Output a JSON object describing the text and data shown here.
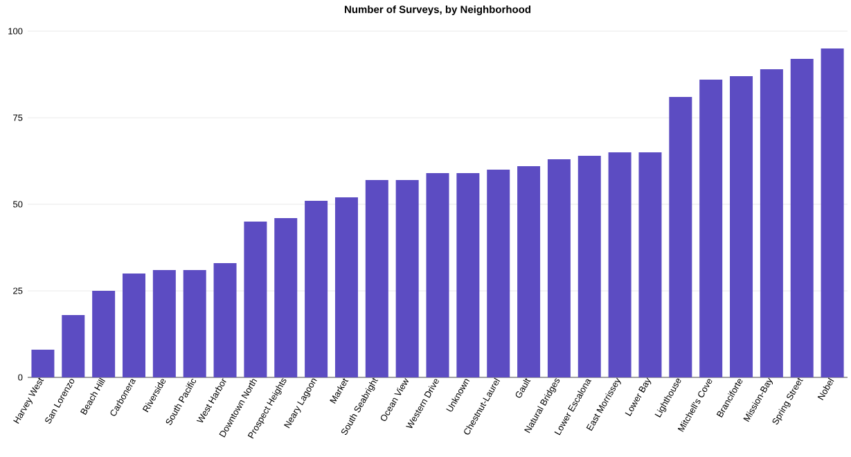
{
  "chart_data": {
    "type": "bar",
    "title": "Number of Surveys, by Neighborhood",
    "categories": [
      "Harvey West",
      "San Lorenzo",
      "Beach Hill",
      "Carbonera",
      "Riverside",
      "South Pacific",
      "West Harbor",
      "Downtown North",
      "Prospect Heights",
      "Neary Lagoon",
      "Market",
      "South Seabright",
      "Ocean View",
      "Western Drive",
      "Unknown",
      "Chestnut-Laurel",
      "Gault",
      "Natural Bridges",
      "Lower Escalona",
      "East Morrissey",
      "Lower Bay",
      "Lighthouse",
      "Mitchell's Cove",
      "Branciforte",
      "Mission-Bay",
      "Spring Street",
      "Nobel"
    ],
    "values": [
      8,
      18,
      25,
      30,
      31,
      31,
      33,
      45,
      46,
      51,
      52,
      57,
      57,
      59,
      59,
      60,
      61,
      63,
      64,
      65,
      65,
      81,
      86,
      87,
      89,
      92,
      95
    ],
    "color": "#5c4cc2",
    "ylim": [
      0,
      100
    ],
    "yticks": [
      0,
      25,
      50,
      75,
      100
    ],
    "grid": "y"
  }
}
